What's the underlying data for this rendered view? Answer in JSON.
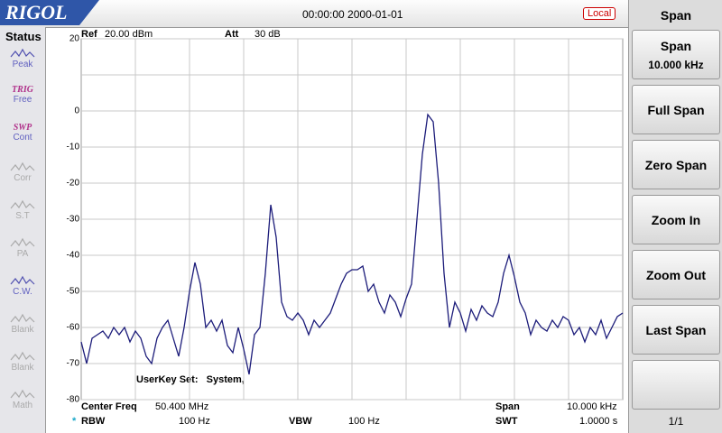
{
  "header": {
    "logo": "RIGOL",
    "datetime": "00:00:00 2000-01-01",
    "mode": "Local"
  },
  "status": {
    "title": "Status",
    "items": [
      {
        "label": "Peak",
        "enabled": true
      },
      {
        "top": "TRIG",
        "label": "Free",
        "enabled": true
      },
      {
        "top": "SWP",
        "label": "Cont",
        "enabled": true
      },
      {
        "label": "Corr",
        "enabled": false
      },
      {
        "label": "S.T",
        "enabled": false
      },
      {
        "label": "PA",
        "enabled": false
      },
      {
        "label": "C.W.",
        "enabled": true
      },
      {
        "label": "Blank",
        "enabled": false
      },
      {
        "label": "Blank",
        "enabled": false
      },
      {
        "label": "Math",
        "enabled": false
      }
    ]
  },
  "menu": {
    "title": "Span",
    "buttons": [
      {
        "label": "Span",
        "value": "10.000 kHz"
      },
      {
        "label": "Full Span"
      },
      {
        "label": "Zero Span"
      },
      {
        "label": "Zoom In"
      },
      {
        "label": "Zoom Out"
      },
      {
        "label": "Last Span"
      }
    ],
    "page": "1/1"
  },
  "chart_data": {
    "type": "line",
    "ref_label": "Ref",
    "ref_value": "20.00 dBm",
    "att_label": "Att",
    "att_value": "30 dB",
    "annotation": "UserKey Set:   System,",
    "ylim": [
      -80,
      20
    ],
    "yticks": [
      20,
      0,
      -10,
      -20,
      -30,
      -40,
      -50,
      -60,
      -70,
      -80
    ],
    "series": [
      {
        "color": "#1c1c7a",
        "values": [
          -64,
          -70,
          -63,
          -62,
          -61,
          -63,
          -60,
          -62,
          -60,
          -64,
          -61,
          -63,
          -68,
          -70,
          -63,
          -60,
          -58,
          -63,
          -68,
          -60,
          -50,
          -42,
          -48,
          -60,
          -58,
          -61,
          -58,
          -65,
          -67,
          -60,
          -66,
          -73,
          -62,
          -60,
          -45,
          -26,
          -35,
          -53,
          -57,
          -58,
          -56,
          -58,
          -62,
          -58,
          -60,
          -58,
          -56,
          -52,
          -48,
          -45,
          -44,
          -44,
          -43,
          -50,
          -48,
          -53,
          -56,
          -51,
          -53,
          -57,
          -52,
          -48,
          -30,
          -12,
          -1,
          -3,
          -20,
          -45,
          -60,
          -53,
          -56,
          -61,
          -55,
          -58,
          -54,
          -56,
          -57,
          -53,
          -45,
          -40,
          -46,
          -53,
          -56,
          -62,
          -58,
          -60,
          -61,
          -58,
          -60,
          -57,
          -58,
          -62,
          -60,
          -64,
          -60,
          -62,
          -58,
          -63,
          -60,
          -57,
          -56
        ]
      }
    ]
  },
  "footer": {
    "center_label": "Center Freq",
    "center_value": "50.400 MHz",
    "span_label": "Span",
    "span_value": "10.000 kHz",
    "rbw_marker": "*",
    "rbw_label": "RBW",
    "rbw_value": "100 Hz",
    "vbw_label": "VBW",
    "vbw_value": "100 Hz",
    "swt_label": "SWT",
    "swt_value": "1.0000 s"
  }
}
